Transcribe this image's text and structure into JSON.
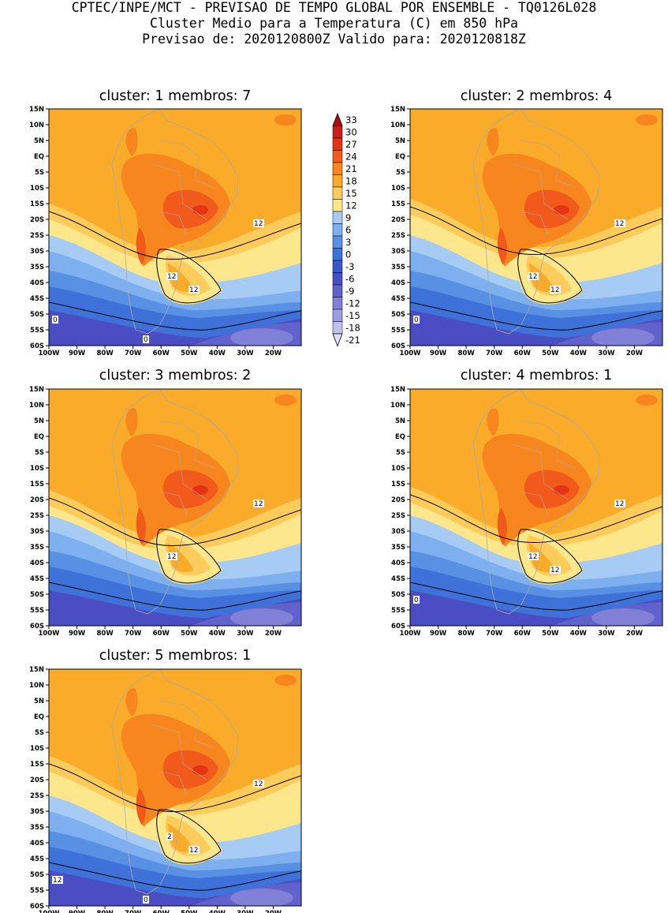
{
  "header": {
    "line1": "CPTEC/INPE/MCT - PREVISAO DE TEMPO GLOBAL POR ENSEMBLE - TQ0126L028",
    "line2": "Cluster Medio para a Temperatura (C) em 850 hPa",
    "line3": "Previsao de: 2020120800Z   Valido para: 2020120818Z"
  },
  "axes": {
    "lat_labels": [
      "15N",
      "10N",
      "5N",
      "EQ",
      "5S",
      "10S",
      "15S",
      "20S",
      "25S",
      "30S",
      "35S",
      "40S",
      "45S",
      "50S",
      "55S",
      "60S"
    ],
    "lon_labels": [
      "100W",
      "90W",
      "80W",
      "70W",
      "60W",
      "50W",
      "40W",
      "30W",
      "20W"
    ]
  },
  "colorbar": {
    "levels": [
      "33",
      "30",
      "27",
      "24",
      "21",
      "18",
      "15",
      "12",
      "9",
      "6",
      "3",
      "0",
      "-3",
      "-6",
      "-9",
      "-12",
      "-15",
      "-18",
      "-21"
    ],
    "colors": [
      "#a50f15",
      "#c81e1e",
      "#e43414",
      "#f25a1c",
      "#f8861e",
      "#fbab2a",
      "#fdcc5a",
      "#fde78d",
      "#a6cbf5",
      "#7eb0f0",
      "#5890e4",
      "#3f72d9",
      "#3a56c9",
      "#4a4ec2",
      "#6262cc",
      "#8080d6",
      "#9c9cde",
      "#c0c0eb",
      "#e0e0f5"
    ]
  },
  "panels": [
    {
      "title": "cluster: 1   membros: 7",
      "contour_labels": [
        "12",
        "12",
        "12",
        "0",
        "0"
      ]
    },
    {
      "title": "cluster: 2   membros: 4",
      "contour_labels": [
        "12",
        "12",
        "12",
        "0"
      ]
    },
    {
      "title": "cluster: 3   membros: 2",
      "contour_labels": [
        "12",
        "12"
      ]
    },
    {
      "title": "cluster: 4   membros: 1",
      "contour_labels": [
        "12",
        "12",
        "12",
        "0"
      ]
    },
    {
      "title": "cluster: 5   membros: 1",
      "contour_labels": [
        "2",
        "12",
        "12",
        "12",
        "0"
      ]
    }
  ]
}
